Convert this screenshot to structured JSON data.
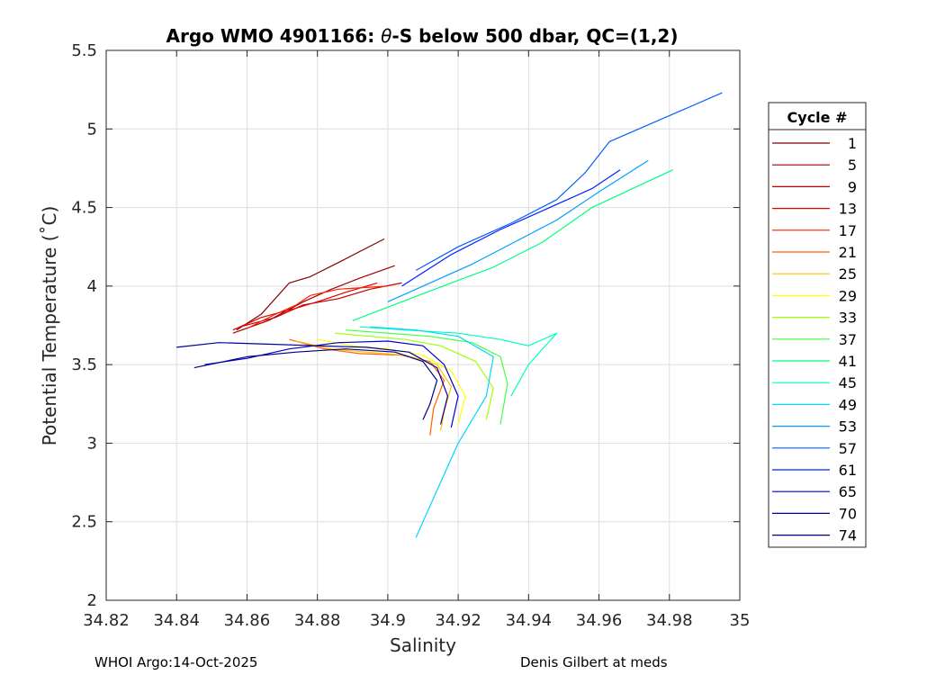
{
  "chart_data": {
    "type": "line",
    "title": "Argo WMO 4901166: θ-S below 500 dbar,  QC=(1,2)",
    "title_parts": {
      "prefix": "Argo WMO 4901166: ",
      "symbol": "θ",
      "suffix": "-S below 500 dbar,  QC=(1,2)"
    },
    "xlabel": "Salinity",
    "ylabel": "Potential Temperature (˚C)",
    "xlim": [
      34.82,
      35
    ],
    "ylim": [
      2,
      5.5
    ],
    "xticks": [
      34.82,
      34.84,
      34.86,
      34.88,
      34.9,
      34.92,
      34.94,
      34.96,
      34.98,
      35
    ],
    "xtick_labels": [
      "34.82",
      "34.84",
      "34.86",
      "34.88",
      "34.9",
      "34.92",
      "34.94",
      "34.96",
      "34.98",
      "35"
    ],
    "yticks": [
      2,
      2.5,
      3,
      3.5,
      4,
      4.5,
      5,
      5.5
    ],
    "ytick_labels": [
      "2",
      "2.5",
      "3",
      "3.5",
      "4",
      "4.5",
      "5",
      "5.5"
    ],
    "grid": true,
    "legend_title": "Cycle #",
    "legend_position": "outside-right",
    "series": [
      {
        "name": "1",
        "color": "#800000",
        "x": [
          34.857,
          34.864,
          34.872,
          34.878,
          34.886,
          34.892,
          34.899
        ],
        "y": [
          3.72,
          3.82,
          4.02,
          4.06,
          4.15,
          4.22,
          4.3
        ]
      },
      {
        "name": "5",
        "color": "#a00000",
        "x": [
          34.856,
          34.866,
          34.876,
          34.884,
          34.892,
          34.902
        ],
        "y": [
          3.7,
          3.78,
          3.9,
          3.98,
          4.05,
          4.13
        ]
      },
      {
        "name": "9",
        "color": "#c00000",
        "x": [
          34.858,
          34.868,
          34.876,
          34.886,
          34.895,
          34.904
        ],
        "y": [
          3.74,
          3.8,
          3.88,
          3.92,
          3.98,
          4.02
        ]
      },
      {
        "name": "13",
        "color": "#e00000",
        "x": [
          34.856,
          34.864,
          34.874,
          34.88,
          34.888,
          34.897
        ],
        "y": [
          3.72,
          3.8,
          3.86,
          3.9,
          3.96,
          4.02
        ]
      },
      {
        "name": "17",
        "color": "#ff2000",
        "x": [
          34.86,
          34.868,
          34.874,
          34.878,
          34.886,
          34.9
        ],
        "y": [
          3.73,
          3.82,
          3.88,
          3.94,
          3.98,
          4.0
        ]
      },
      {
        "name": "21",
        "color": "#ff6000",
        "x": [
          34.872,
          34.882,
          34.892,
          34.904,
          34.912,
          34.916,
          34.913,
          34.912
        ],
        "y": [
          3.66,
          3.6,
          3.57,
          3.56,
          3.52,
          3.4,
          3.22,
          3.05
        ]
      },
      {
        "name": "25",
        "color": "#ffc000",
        "x": [
          34.874,
          34.884,
          34.894,
          34.905,
          34.914,
          34.918,
          34.916,
          34.915
        ],
        "y": [
          3.65,
          3.6,
          3.58,
          3.56,
          3.5,
          3.36,
          3.2,
          3.08
        ]
      },
      {
        "name": "29",
        "color": "#ffff00",
        "x": [
          34.88,
          34.89,
          34.9,
          34.91,
          34.918,
          34.922,
          34.92
        ],
        "y": [
          3.66,
          3.62,
          3.6,
          3.56,
          3.46,
          3.3,
          3.12
        ]
      },
      {
        "name": "33",
        "color": "#a0ff00",
        "x": [
          34.885,
          34.895,
          34.905,
          34.915,
          34.925,
          34.93,
          34.928
        ],
        "y": [
          3.7,
          3.68,
          3.66,
          3.62,
          3.52,
          3.35,
          3.15
        ]
      },
      {
        "name": "37",
        "color": "#40ff40",
        "x": [
          34.888,
          34.9,
          34.912,
          34.924,
          34.932,
          34.934,
          34.932
        ],
        "y": [
          3.72,
          3.7,
          3.68,
          3.64,
          3.55,
          3.38,
          3.12
        ]
      },
      {
        "name": "41",
        "color": "#00ff80",
        "x": [
          34.89,
          34.904,
          34.918,
          34.93,
          34.944,
          34.958,
          34.981
        ],
        "y": [
          3.78,
          3.9,
          4.02,
          4.12,
          4.28,
          4.5,
          4.74
        ]
      },
      {
        "name": "45",
        "color": "#00ffc0",
        "x": [
          34.892,
          34.905,
          34.92,
          34.932,
          34.94,
          34.948,
          34.94,
          34.935
        ],
        "y": [
          3.74,
          3.72,
          3.7,
          3.66,
          3.62,
          3.7,
          3.5,
          3.3
        ]
      },
      {
        "name": "49",
        "color": "#00d8ff",
        "x": [
          34.895,
          34.908,
          34.92,
          34.93,
          34.928,
          34.92,
          34.914,
          34.908
        ],
        "y": [
          3.74,
          3.72,
          3.68,
          3.55,
          3.3,
          3.0,
          2.7,
          2.4
        ]
      },
      {
        "name": "53",
        "color": "#00a0ff",
        "x": [
          34.9,
          34.912,
          34.924,
          34.936,
          34.948,
          34.96,
          34.974
        ],
        "y": [
          3.9,
          4.02,
          4.14,
          4.28,
          4.42,
          4.6,
          4.8
        ]
      },
      {
        "name": "57",
        "color": "#0060ff",
        "x": [
          34.908,
          34.92,
          34.935,
          34.948,
          34.956,
          34.963,
          34.995
        ],
        "y": [
          4.1,
          4.25,
          4.4,
          4.55,
          4.72,
          4.92,
          5.23
        ]
      },
      {
        "name": "61",
        "color": "#0020ff",
        "x": [
          34.904,
          34.918,
          34.932,
          34.946,
          34.958,
          34.966
        ],
        "y": [
          4.0,
          4.2,
          4.36,
          4.5,
          4.62,
          4.74
        ]
      },
      {
        "name": "65",
        "color": "#0000d0",
        "x": [
          34.848,
          34.86,
          34.872,
          34.886,
          34.9,
          34.91,
          34.916,
          34.92,
          34.918
        ],
        "y": [
          3.5,
          3.54,
          3.6,
          3.64,
          3.65,
          3.62,
          3.5,
          3.3,
          3.1
        ]
      },
      {
        "name": "70",
        "color": "#0000a0",
        "x": [
          34.84,
          34.852,
          34.866,
          34.88,
          34.894,
          34.906,
          34.914,
          34.917,
          34.915
        ],
        "y": [
          3.61,
          3.64,
          3.63,
          3.62,
          3.61,
          3.58,
          3.48,
          3.3,
          3.12
        ]
      },
      {
        "name": "74",
        "color": "#000080",
        "x": [
          34.845,
          34.86,
          34.874,
          34.888,
          34.902,
          34.91,
          34.914,
          34.912,
          34.91
        ],
        "y": [
          3.48,
          3.55,
          3.58,
          3.6,
          3.58,
          3.52,
          3.4,
          3.25,
          3.15
        ]
      }
    ]
  },
  "footer": {
    "left": "WHOI Argo:14-Oct-2025",
    "right": "Denis Gilbert at meds"
  }
}
